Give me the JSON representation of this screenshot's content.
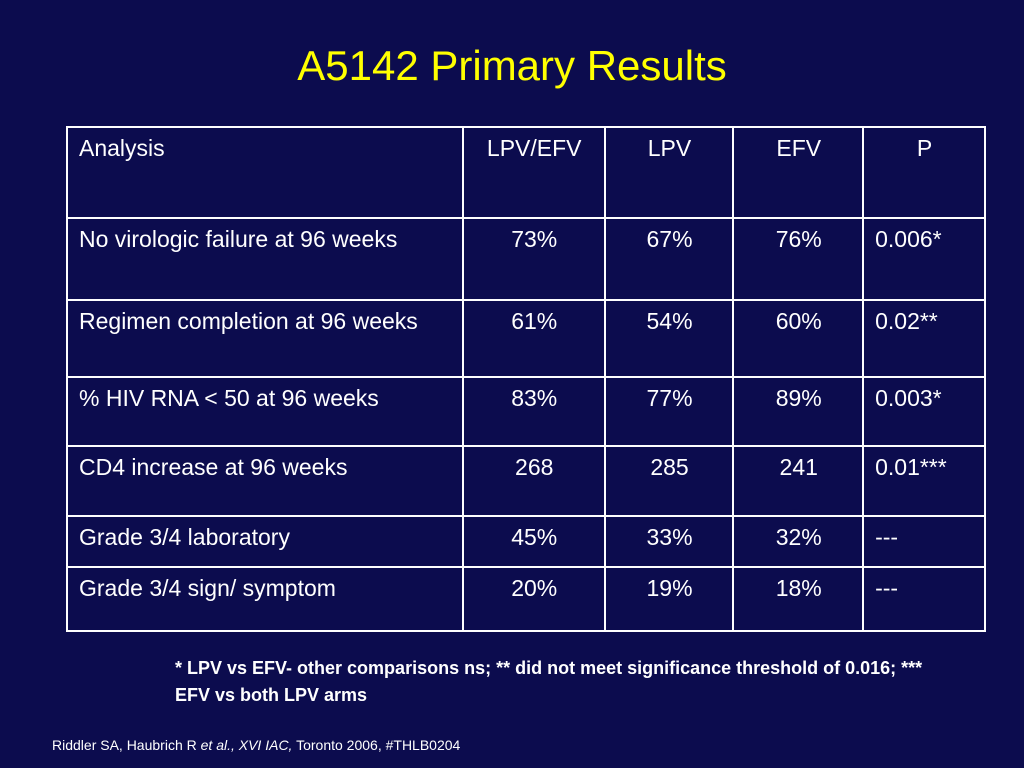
{
  "slide": {
    "title": "A5142 Primary Results",
    "background_color": "#0c0c4e",
    "title_color": "#ffff00"
  },
  "table": {
    "columns": [
      "Analysis",
      "LPV/EFV",
      "LPV",
      "EFV",
      "P"
    ],
    "rows": [
      [
        "No virologic failure at 96 weeks",
        "73%",
        "67%",
        "76%",
        "0.006*"
      ],
      [
        "Regimen completion at 96 weeks",
        "61%",
        "54%",
        "60%",
        "0.02**"
      ],
      [
        "% HIV RNA < 50 at 96 weeks",
        "83%",
        "77%",
        "89%",
        "0.003*"
      ],
      [
        "CD4 increase at 96 weeks",
        "268",
        "285",
        "241",
        "0.01***"
      ],
      [
        "Grade 3/4 laboratory",
        "45%",
        "33%",
        "32%",
        "---"
      ],
      [
        "Grade 3/4 sign/ symptom",
        "20%",
        "19%",
        "18%",
        "---"
      ]
    ]
  },
  "footnote": "* LPV vs EFV- other comparisons ns; ** did not meet significance threshold of 0.016; *** EFV vs both LPV arms",
  "citation": {
    "authors": "Riddler SA, Haubrich R",
    "etal": "et al., XVI IAC,",
    "rest": "Toronto 2006, #THLB0204"
  }
}
